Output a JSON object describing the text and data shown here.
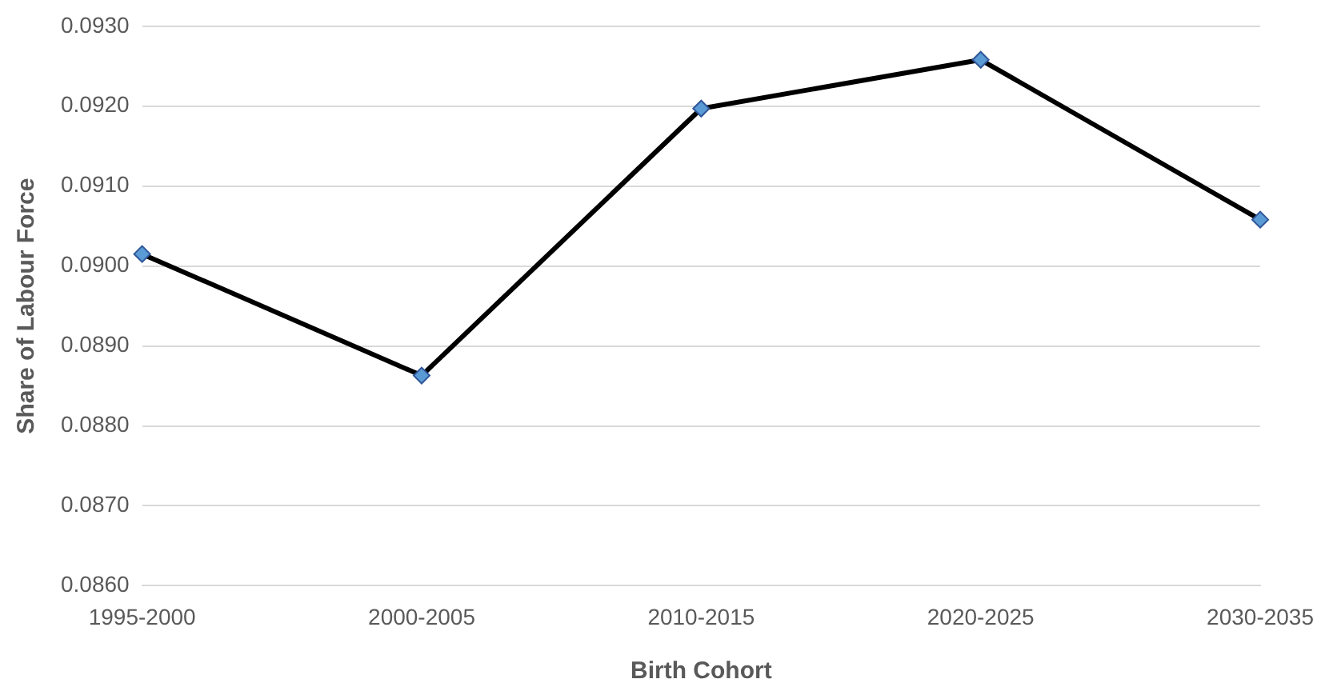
{
  "chart_data": {
    "type": "line",
    "xlabel": "Birth Cohort",
    "ylabel": "Share of Labour Force",
    "categories": [
      "1995-2000",
      "2000-2005",
      "2010-2015",
      "2020-2025",
      "2030-2035"
    ],
    "series": [
      {
        "color": "#000000",
        "values": [
          0.09015,
          0.08863,
          0.09197,
          0.09258,
          0.09058
        ]
      }
    ],
    "ylim": [
      0.086,
      0.093
    ],
    "yticks": [
      {
        "value": 0.086,
        "label": "0.0860"
      },
      {
        "value": 0.087,
        "label": "0.0870"
      },
      {
        "value": 0.088,
        "label": "0.0880"
      },
      {
        "value": 0.089,
        "label": "0.0890"
      },
      {
        "value": 0.09,
        "label": "0.0900"
      },
      {
        "value": 0.091,
        "label": "0.0910"
      },
      {
        "value": 0.092,
        "label": "0.0920"
      },
      {
        "value": 0.093,
        "label": "0.0930"
      }
    ],
    "grid": "y",
    "legend": false,
    "marker": "diamond",
    "line_style": "solid"
  }
}
